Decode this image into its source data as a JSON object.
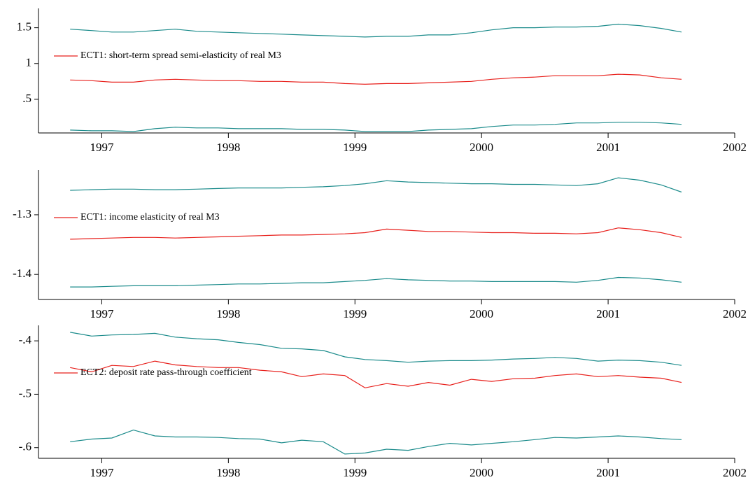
{
  "chart_data": [
    {
      "type": "line",
      "legend": "upper left",
      "x": [
        1996.75,
        1996.92,
        1997.08,
        1997.25,
        1997.42,
        1997.58,
        1997.75,
        1997.92,
        1998.08,
        1998.25,
        1998.42,
        1998.58,
        1998.75,
        1998.92,
        1999.08,
        1999.25,
        1999.42,
        1999.58,
        1999.75,
        1999.92,
        2000.08,
        2000.25,
        2000.42,
        2000.58,
        2000.75,
        2000.92,
        2001.08,
        2001.25,
        2001.42,
        2001.58
      ],
      "series": [
        {
          "color": "#1b8b8b",
          "values": [
            1.48,
            1.46,
            1.44,
            1.44,
            1.46,
            1.48,
            1.45,
            1.44,
            1.43,
            1.42,
            1.41,
            1.4,
            1.39,
            1.38,
            1.37,
            1.38,
            1.38,
            1.4,
            1.4,
            1.43,
            1.47,
            1.5,
            1.5,
            1.51,
            1.51,
            1.52,
            1.55,
            1.53,
            1.49,
            1.44
          ]
        },
        {
          "name": "ECT1: short-term spread semi-elasticity of real M3",
          "color": "#e8201c",
          "values": [
            0.77,
            0.76,
            0.74,
            0.74,
            0.77,
            0.78,
            0.77,
            0.76,
            0.76,
            0.75,
            0.75,
            0.74,
            0.74,
            0.72,
            0.71,
            0.72,
            0.72,
            0.73,
            0.74,
            0.75,
            0.78,
            0.8,
            0.81,
            0.83,
            0.83,
            0.83,
            0.85,
            0.84,
            0.8,
            0.78
          ]
        },
        {
          "color": "#1b8b8b",
          "values": [
            0.07,
            0.06,
            0.06,
            0.05,
            0.09,
            0.11,
            0.1,
            0.1,
            0.09,
            0.09,
            0.09,
            0.08,
            0.08,
            0.07,
            0.05,
            0.05,
            0.05,
            0.07,
            0.08,
            0.09,
            0.12,
            0.14,
            0.14,
            0.15,
            0.17,
            0.17,
            0.18,
            0.18,
            0.17,
            0.15
          ]
        }
      ],
      "xlim": [
        1996.5,
        2002
      ],
      "xticks": [
        1997,
        1998,
        1999,
        2000,
        2001,
        2002
      ],
      "ylim": [
        0.03,
        1.77
      ],
      "yticks": [
        {
          "value": 0.5,
          "label": ".5"
        },
        1,
        1.5
      ]
    },
    {
      "type": "line",
      "legend": "upper left",
      "x": [
        1996.75,
        1996.92,
        1997.08,
        1997.25,
        1997.42,
        1997.58,
        1997.75,
        1997.92,
        1998.08,
        1998.25,
        1998.42,
        1998.58,
        1998.75,
        1998.92,
        1999.08,
        1999.25,
        1999.42,
        1999.58,
        1999.75,
        1999.92,
        2000.08,
        2000.25,
        2000.42,
        2000.58,
        2000.75,
        2000.92,
        2001.08,
        2001.25,
        2001.42,
        2001.58
      ],
      "series": [
        {
          "color": "#1b8b8b",
          "values": [
            -1.259,
            -1.258,
            -1.257,
            -1.257,
            -1.258,
            -1.258,
            -1.257,
            -1.256,
            -1.255,
            -1.255,
            -1.255,
            -1.254,
            -1.253,
            -1.251,
            -1.248,
            -1.243,
            -1.245,
            -1.246,
            -1.247,
            -1.248,
            -1.248,
            -1.249,
            -1.249,
            -1.25,
            -1.251,
            -1.248,
            -1.238,
            -1.242,
            -1.25,
            -1.262
          ]
        },
        {
          "name": "ECT1: income elasticity of real M3",
          "color": "#e8201c",
          "values": [
            -1.341,
            -1.34,
            -1.339,
            -1.338,
            -1.338,
            -1.339,
            -1.338,
            -1.337,
            -1.336,
            -1.335,
            -1.334,
            -1.334,
            -1.333,
            -1.332,
            -1.33,
            -1.324,
            -1.326,
            -1.328,
            -1.328,
            -1.329,
            -1.33,
            -1.33,
            -1.331,
            -1.331,
            -1.332,
            -1.33,
            -1.322,
            -1.325,
            -1.33,
            -1.338
          ]
        },
        {
          "color": "#1b8b8b",
          "values": [
            -1.421,
            -1.421,
            -1.42,
            -1.419,
            -1.419,
            -1.419,
            -1.418,
            -1.417,
            -1.416,
            -1.416,
            -1.415,
            -1.414,
            -1.414,
            -1.412,
            -1.41,
            -1.407,
            -1.409,
            -1.41,
            -1.411,
            -1.411,
            -1.412,
            -1.412,
            -1.412,
            -1.412,
            -1.413,
            -1.41,
            -1.405,
            -1.406,
            -1.409,
            -1.413
          ]
        }
      ],
      "xlim": [
        1996.5,
        2002
      ],
      "xticks": [
        1997,
        1998,
        1999,
        2000,
        2001,
        2002
      ],
      "ylim": [
        -1.442,
        -1.225
      ],
      "yticks": [
        -1.4,
        -1.3
      ]
    },
    {
      "type": "line",
      "legend": "upper left",
      "x": [
        1996.75,
        1996.92,
        1997.08,
        1997.25,
        1997.42,
        1997.58,
        1997.75,
        1997.92,
        1998.08,
        1998.25,
        1998.42,
        1998.58,
        1998.75,
        1998.92,
        1999.08,
        1999.25,
        1999.42,
        1999.58,
        1999.75,
        1999.92,
        2000.08,
        2000.25,
        2000.42,
        2000.58,
        2000.75,
        2000.92,
        2001.08,
        2001.25,
        2001.42,
        2001.58
      ],
      "series": [
        {
          "color": "#1b8b8b",
          "values": [
            -0.384,
            -0.391,
            -0.389,
            -0.388,
            -0.386,
            -0.393,
            -0.396,
            -0.398,
            -0.403,
            -0.407,
            -0.414,
            -0.415,
            -0.418,
            -0.43,
            -0.435,
            -0.437,
            -0.44,
            -0.438,
            -0.437,
            -0.437,
            -0.436,
            -0.434,
            -0.433,
            -0.431,
            -0.433,
            -0.438,
            -0.436,
            -0.437,
            -0.44,
            -0.446
          ]
        },
        {
          "name": "ECT2: deposit rate pass-through coefficient",
          "color": "#e8201c",
          "values": [
            -0.45,
            -0.458,
            -0.446,
            -0.448,
            -0.438,
            -0.445,
            -0.448,
            -0.45,
            -0.45,
            -0.455,
            -0.458,
            -0.467,
            -0.462,
            -0.465,
            -0.488,
            -0.48,
            -0.485,
            -0.478,
            -0.483,
            -0.472,
            -0.476,
            -0.471,
            -0.47,
            -0.465,
            -0.462,
            -0.467,
            -0.465,
            -0.468,
            -0.47,
            -0.478
          ]
        },
        {
          "color": "#1b8b8b",
          "values": [
            -0.589,
            -0.584,
            -0.582,
            -0.567,
            -0.578,
            -0.58,
            -0.58,
            -0.581,
            -0.583,
            -0.584,
            -0.591,
            -0.586,
            -0.589,
            -0.612,
            -0.61,
            -0.603,
            -0.605,
            -0.598,
            -0.592,
            -0.595,
            -0.592,
            -0.589,
            -0.585,
            -0.581,
            -0.582,
            -0.58,
            -0.578,
            -0.58,
            -0.583,
            -0.585
          ]
        }
      ],
      "xlim": [
        1996.5,
        2002
      ],
      "xticks": [
        1997,
        1998,
        1999,
        2000,
        2001,
        2002
      ],
      "ylim": [
        -0.62,
        -0.371
      ],
      "yticks": [
        {
          "value": -0.6,
          "label": "-.6"
        },
        {
          "value": -0.5,
          "label": "-.5"
        },
        {
          "value": -0.4,
          "label": "-.4"
        }
      ]
    }
  ]
}
